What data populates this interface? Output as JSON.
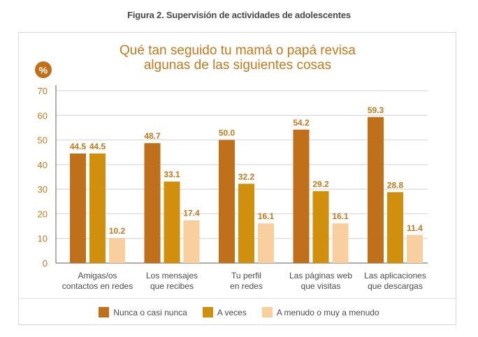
{
  "figure_title": "Figura 2. Supervisión de actividades de adolescentes",
  "chart_data": {
    "type": "bar",
    "title": "Qué tan seguido tu mamá o papá revisa algunas de las siguientes cosas",
    "title_lines": [
      "Qué tan seguido tu mamá o papá revisa",
      "algunas de las siguientes cosas"
    ],
    "ylabel": "%",
    "xlabel": "",
    "ylim": [
      0,
      70
    ],
    "yticks": [
      0,
      10,
      20,
      30,
      40,
      50,
      60,
      70
    ],
    "grid": true,
    "legend_position": "bottom",
    "categories": [
      [
        "Amigas/os",
        "contactos en redes"
      ],
      [
        "Los mensajes",
        "que recibes"
      ],
      [
        "Tu perfil",
        "en redes"
      ],
      [
        "Las páginas web",
        "que visitas"
      ],
      [
        "Las aplicaciones",
        "que descargas"
      ]
    ],
    "series": [
      {
        "name": "Nunca o casi nunca",
        "color": "#c06f1a",
        "values": [
          44.5,
          48.7,
          50.0,
          54.2,
          59.3
        ],
        "labels": [
          "44.5",
          "48.7",
          "50.0",
          "54.2",
          "59.3"
        ]
      },
      {
        "name": "A veces",
        "color": "#d18f0e",
        "values": [
          44.5,
          33.1,
          32.2,
          29.2,
          28.8
        ],
        "labels": [
          "44.5",
          "33.1",
          "32.2",
          "29.2",
          "28.8"
        ]
      },
      {
        "name": "A menudo o muy a menudo",
        "color": "#f9cfa0",
        "values": [
          10.2,
          17.4,
          16.1,
          16.1,
          11.4
        ],
        "labels": [
          "10.2",
          "17.4",
          "16.1",
          "16.1",
          "11.4"
        ]
      }
    ]
  },
  "colors": {
    "axis_text": "#c07a1e",
    "label_text": "#c07a1e",
    "badge": "#c06f1a"
  }
}
